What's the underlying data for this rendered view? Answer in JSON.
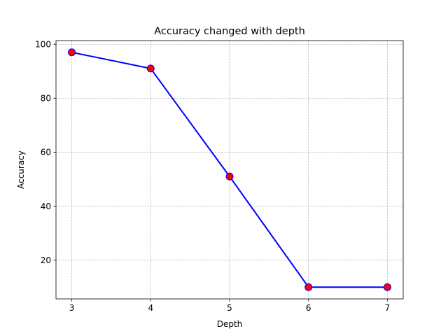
{
  "chart_data": {
    "type": "line",
    "title": "Accuracy changed with depth",
    "xlabel": "Depth",
    "ylabel": "Accuracy",
    "x": [
      3,
      4,
      5,
      6,
      7
    ],
    "series": [
      {
        "values": [
          97,
          91,
          51,
          10,
          10
        ],
        "line_color": "#0000ff",
        "marker": "circle",
        "marker_face_color": "#ff0000",
        "marker_edge_color": "#0000ff"
      }
    ],
    "xlim": [
      2.8,
      7.2
    ],
    "ylim": [
      5.65,
      101.35
    ],
    "xticks": [
      3,
      4,
      5,
      6,
      7
    ],
    "yticks": [
      20,
      40,
      60,
      80,
      100
    ],
    "grid": true,
    "grid_style": "dashed",
    "grid_color": "#b0b0b0",
    "legend": false
  }
}
